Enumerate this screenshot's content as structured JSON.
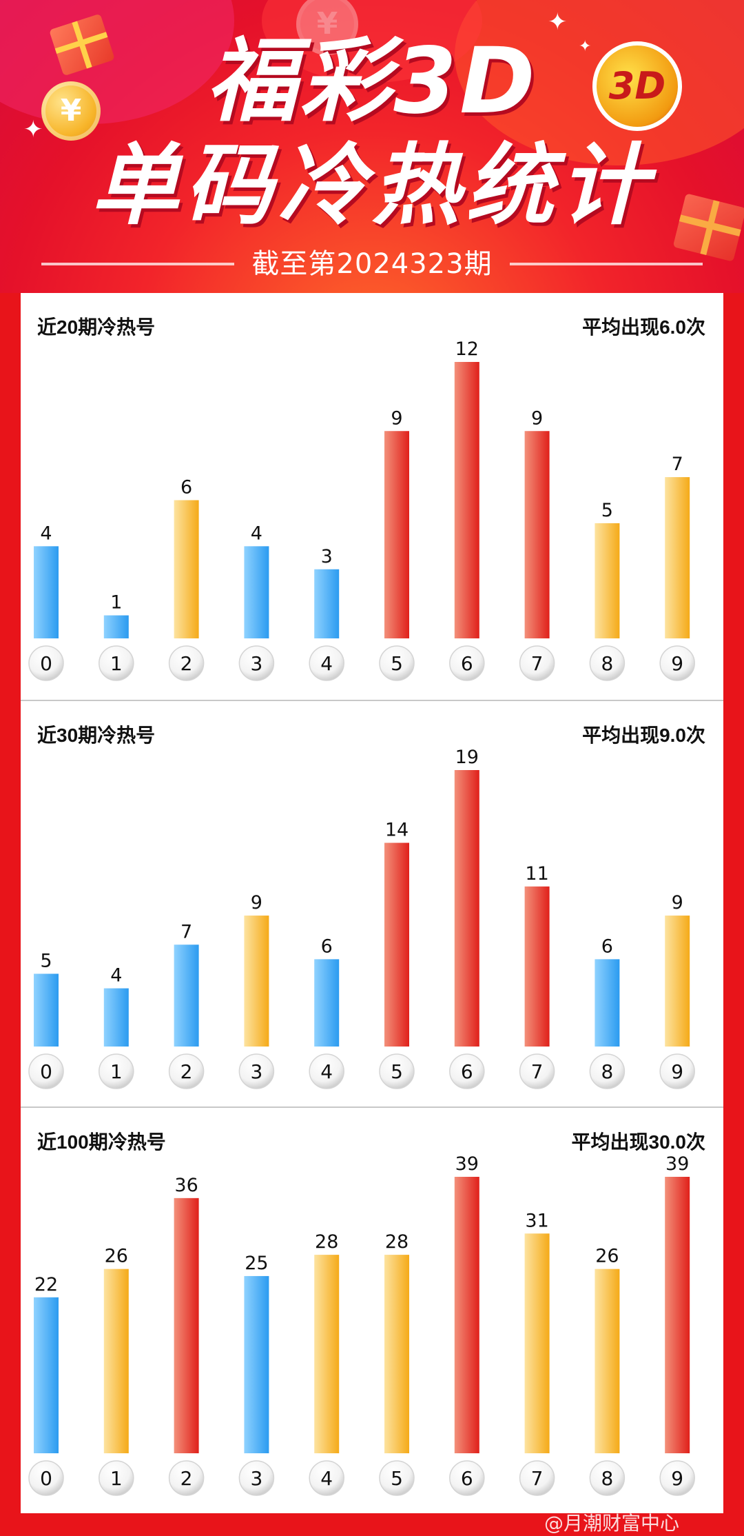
{
  "header": {
    "title_line1": "福彩3D",
    "title_line2": "单码冷热统计",
    "subtitle": "截至第2024323期",
    "logo_text": "3D",
    "coin_symbol": "¥"
  },
  "colors": {
    "background": "#e8141a",
    "cold": "#3aa6f2",
    "warm": "#f7b733",
    "hot": "#e8352a"
  },
  "chart_data": [
    {
      "type": "bar",
      "title": "近20期冷热号",
      "avg_label": "平均出现6.0次",
      "categories": [
        "0",
        "1",
        "2",
        "3",
        "4",
        "5",
        "6",
        "7",
        "8",
        "9"
      ],
      "values": [
        4,
        1,
        6,
        4,
        3,
        9,
        12,
        9,
        5,
        7
      ],
      "heat": [
        "cold",
        "cold",
        "warm",
        "cold",
        "cold",
        "hot",
        "hot",
        "hot",
        "warm",
        "warm"
      ],
      "ylim": [
        0,
        12
      ]
    },
    {
      "type": "bar",
      "title": "近30期冷热号",
      "avg_label": "平均出现9.0次",
      "categories": [
        "0",
        "1",
        "2",
        "3",
        "4",
        "5",
        "6",
        "7",
        "8",
        "9"
      ],
      "values": [
        5,
        4,
        7,
        9,
        6,
        14,
        19,
        11,
        6,
        9
      ],
      "heat": [
        "cold",
        "cold",
        "cold",
        "warm",
        "cold",
        "hot",
        "hot",
        "hot",
        "cold",
        "warm"
      ],
      "ylim": [
        0,
        19
      ]
    },
    {
      "type": "bar",
      "title": "近100期冷热号",
      "avg_label": "平均出现30.0次",
      "categories": [
        "0",
        "1",
        "2",
        "3",
        "4",
        "5",
        "6",
        "7",
        "8",
        "9"
      ],
      "values": [
        22,
        26,
        36,
        25,
        28,
        28,
        39,
        31,
        26,
        39
      ],
      "heat": [
        "cold",
        "warm",
        "hot",
        "cold",
        "warm",
        "warm",
        "hot",
        "warm",
        "warm",
        "hot"
      ],
      "ylim": [
        0,
        39
      ]
    }
  ],
  "watermark": "@月潮财富中心"
}
